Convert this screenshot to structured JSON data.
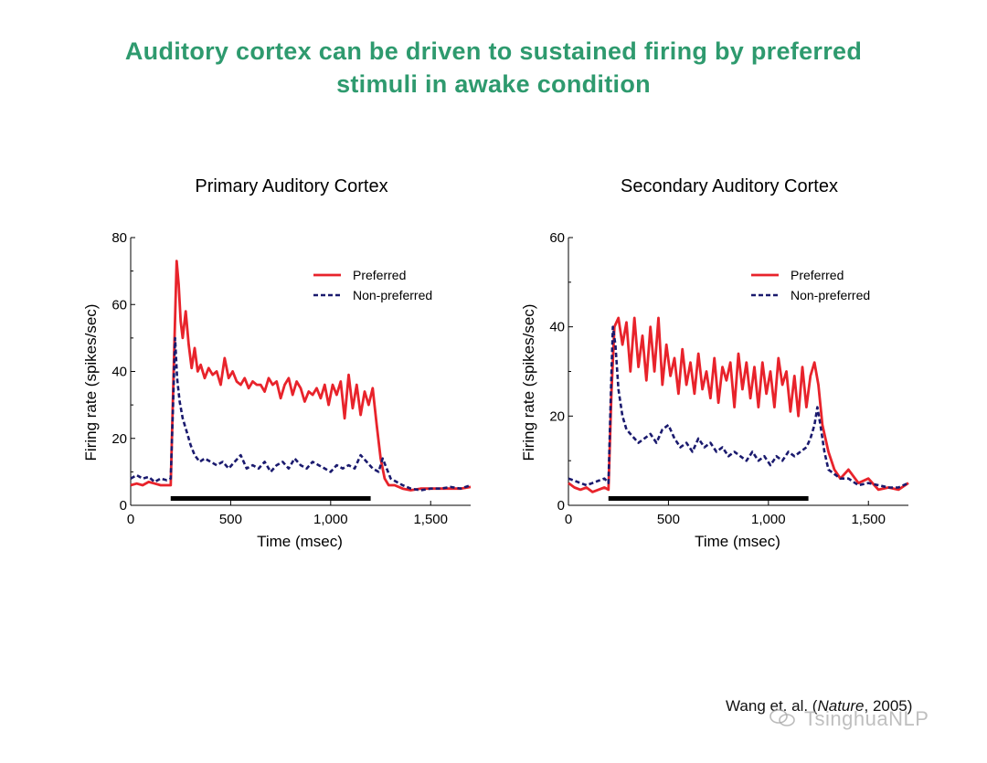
{
  "page": {
    "title_line1": "Auditory cortex can be driven to sustained firing by preferred",
    "title_line2": "stimuli in awake condition",
    "title_color": "#2e9a6e",
    "citation_prefix": "Wang et. al. (",
    "citation_journal": "Nature",
    "citation_suffix": ", 2005)",
    "watermark_text": "TsinghuaNLP"
  },
  "colors": {
    "preferred": "#e8232b",
    "nonpreferred": "#1a1a6e",
    "stimulus_bar": "#000000",
    "axis": "#000000"
  },
  "chart_data": [
    {
      "type": "line",
      "title": "Primary Auditory Cortex",
      "xlabel": "Time (msec)",
      "ylabel": "Firing rate (spikes/sec)",
      "xlim": [
        0,
        1700
      ],
      "ylim": [
        0,
        80
      ],
      "xticks": [
        0,
        500,
        1000,
        1500
      ],
      "xtick_labels": [
        "0",
        "500",
        "1,000",
        "1,500"
      ],
      "yticks": [
        0,
        20,
        40,
        60,
        80
      ],
      "ytick_labels": [
        "0",
        "20",
        "40",
        "60",
        "80"
      ],
      "legend_position": "top-right",
      "stimulus_bar": {
        "x_start": 200,
        "x_end": 1200
      },
      "series": [
        {
          "name": "Preferred",
          "style": "solid",
          "x": [
            0,
            30,
            60,
            90,
            120,
            150,
            180,
            200,
            215,
            230,
            240,
            250,
            260,
            275,
            290,
            305,
            320,
            335,
            350,
            370,
            390,
            410,
            430,
            450,
            470,
            490,
            510,
            530,
            550,
            570,
            590,
            610,
            630,
            650,
            670,
            690,
            710,
            730,
            750,
            770,
            790,
            810,
            830,
            850,
            870,
            890,
            910,
            930,
            950,
            970,
            990,
            1010,
            1030,
            1050,
            1070,
            1090,
            1110,
            1130,
            1150,
            1170,
            1190,
            1210,
            1230,
            1250,
            1270,
            1290,
            1320,
            1360,
            1400,
            1450,
            1500,
            1550,
            1600,
            1650,
            1700
          ],
          "y": [
            6,
            6.5,
            6,
            7,
            6.5,
            6,
            6,
            6,
            40,
            73,
            66,
            55,
            50,
            58,
            48,
            41,
            47,
            40,
            42,
            38,
            41,
            39,
            40,
            36,
            44,
            38,
            40,
            37,
            36,
            38,
            35,
            37,
            36,
            36,
            34,
            38,
            36,
            37,
            32,
            36,
            38,
            33,
            37,
            35,
            31,
            34,
            33,
            35,
            32,
            36,
            30,
            36,
            33,
            37,
            26,
            39,
            29,
            36,
            27,
            34,
            30,
            35,
            24,
            14,
            8,
            6,
            6,
            5,
            4.5,
            5,
            5,
            5,
            5,
            5,
            5.5
          ]
        },
        {
          "name": "Non-preferred",
          "style": "dashed",
          "x": [
            0,
            30,
            60,
            90,
            120,
            150,
            180,
            200,
            212,
            222,
            232,
            245,
            260,
            280,
            300,
            320,
            345,
            370,
            400,
            430,
            460,
            490,
            520,
            550,
            580,
            610,
            640,
            670,
            700,
            730,
            760,
            790,
            820,
            850,
            880,
            910,
            940,
            970,
            1000,
            1030,
            1060,
            1090,
            1120,
            1150,
            1180,
            1210,
            1240,
            1260,
            1280,
            1300,
            1330,
            1360,
            1400,
            1450,
            1500,
            1550,
            1600,
            1650,
            1700
          ],
          "y": [
            8,
            9,
            8,
            8.5,
            7,
            8,
            7.5,
            8,
            30,
            50,
            38,
            31,
            26,
            22,
            18,
            15,
            13,
            14,
            13,
            12,
            13,
            11,
            13,
            15,
            11,
            12,
            11,
            13,
            10,
            12,
            13,
            11,
            14,
            12,
            11,
            13,
            12,
            11,
            10,
            12,
            11,
            12,
            11,
            15,
            13,
            11,
            10,
            14,
            11,
            8,
            7,
            6,
            5,
            4.5,
            5,
            5,
            5.5,
            5,
            6
          ]
        }
      ]
    },
    {
      "type": "line",
      "title": "Secondary Auditory Cortex",
      "xlabel": "Time (msec)",
      "ylabel": "Firing rate (spikes/sec)",
      "xlim": [
        0,
        1700
      ],
      "ylim": [
        0,
        60
      ],
      "xticks": [
        0,
        500,
        1000,
        1500
      ],
      "xtick_labels": [
        "0",
        "500",
        "1,000",
        "1,500"
      ],
      "yticks": [
        0,
        20,
        40,
        60
      ],
      "ytick_labels": [
        "0",
        "20",
        "40",
        "60"
      ],
      "legend_position": "top-right",
      "stimulus_bar": {
        "x_start": 200,
        "x_end": 1200
      },
      "series": [
        {
          "name": "Preferred",
          "style": "solid",
          "x": [
            0,
            30,
            60,
            90,
            120,
            150,
            180,
            200,
            215,
            230,
            250,
            270,
            290,
            310,
            330,
            350,
            370,
            390,
            410,
            430,
            450,
            470,
            490,
            510,
            530,
            550,
            570,
            590,
            610,
            630,
            650,
            670,
            690,
            710,
            730,
            750,
            770,
            790,
            810,
            830,
            850,
            870,
            890,
            910,
            930,
            950,
            970,
            990,
            1010,
            1030,
            1050,
            1070,
            1090,
            1110,
            1130,
            1150,
            1170,
            1190,
            1210,
            1230,
            1250,
            1270,
            1300,
            1330,
            1360,
            1400,
            1450,
            1500,
            1550,
            1600,
            1650,
            1700
          ],
          "y": [
            5,
            4,
            3.5,
            4,
            3,
            3.5,
            4,
            3.5,
            25,
            40,
            42,
            36,
            41,
            30,
            42,
            31,
            38,
            28,
            40,
            30,
            42,
            27,
            36,
            29,
            33,
            25,
            35,
            27,
            32,
            25,
            34,
            26,
            30,
            24,
            33,
            23,
            31,
            28,
            32,
            22,
            34,
            26,
            32,
            24,
            31,
            22,
            32,
            25,
            30,
            22,
            33,
            27,
            30,
            21,
            29,
            20,
            31,
            22,
            29,
            32,
            27,
            18,
            12,
            8,
            6,
            8,
            5,
            6,
            3.5,
            4,
            3.5,
            5
          ]
        },
        {
          "name": "Non-preferred",
          "style": "dashed",
          "x": [
            0,
            30,
            60,
            90,
            120,
            150,
            180,
            200,
            212,
            222,
            235,
            250,
            270,
            290,
            310,
            330,
            350,
            380,
            410,
            440,
            470,
            500,
            530,
            560,
            590,
            620,
            650,
            680,
            710,
            740,
            770,
            800,
            830,
            860,
            890,
            920,
            950,
            980,
            1010,
            1040,
            1070,
            1100,
            1130,
            1160,
            1190,
            1210,
            1230,
            1245,
            1260,
            1280,
            1300,
            1330,
            1360,
            1400,
            1450,
            1500,
            1550,
            1600,
            1650,
            1700
          ],
          "y": [
            6,
            5.5,
            5,
            4.5,
            5,
            5.5,
            6,
            5,
            25,
            40,
            36,
            26,
            20,
            17,
            16,
            15,
            14,
            15,
            16,
            14,
            17,
            18,
            15,
            13,
            14,
            12,
            15,
            13,
            14,
            12,
            13,
            11,
            12,
            11,
            10,
            12,
            10,
            11,
            9,
            11,
            10,
            12,
            11,
            12,
            13,
            15,
            18,
            22,
            18,
            12,
            8,
            7,
            6,
            6,
            4.5,
            5,
            4.5,
            4,
            4,
            5
          ]
        }
      ]
    }
  ]
}
